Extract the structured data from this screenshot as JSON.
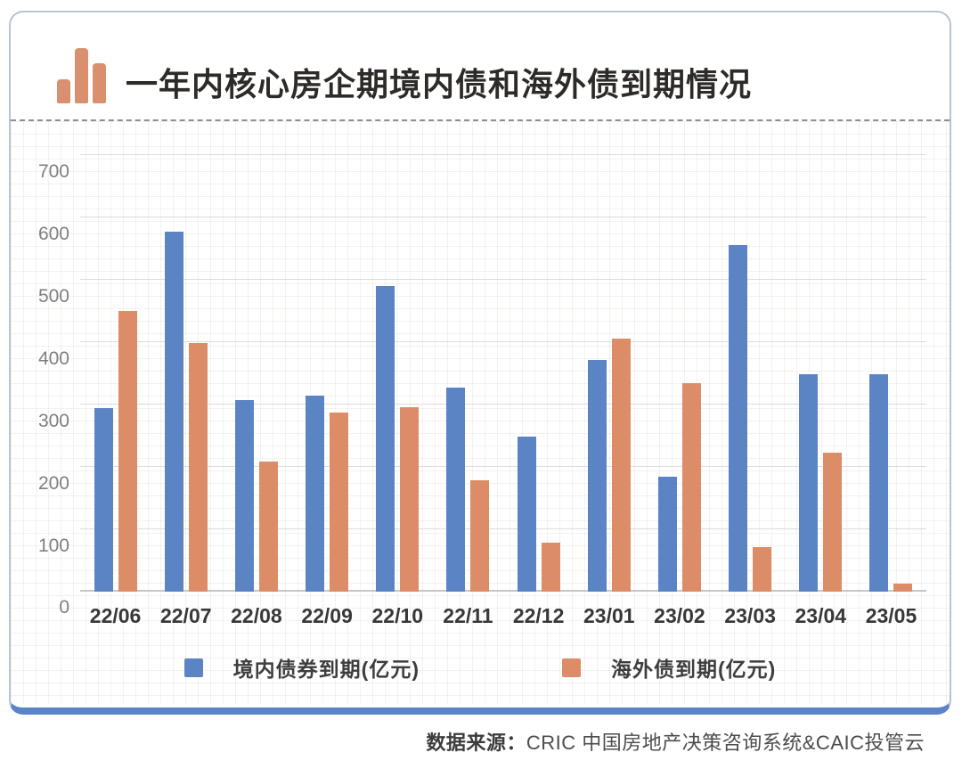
{
  "title": {
    "regular": "一年内核心房企",
    "bold": "期境内债和海外债到期情况"
  },
  "separator": "dashed",
  "chart_data": {
    "type": "bar",
    "title": "一年内核心房企期境内债和海外债到期情况",
    "categories": [
      "22/06",
      "22/07",
      "22/08",
      "22/09",
      "22/10",
      "22/11",
      "22/12",
      "23/01",
      "23/02",
      "23/03",
      "23/04",
      "23/05"
    ],
    "series": [
      {
        "name": "境内债券到期(亿元)",
        "color": "#5b84c4",
        "values": [
          295,
          577,
          307,
          315,
          490,
          327,
          248,
          372,
          184,
          556,
          349,
          349
        ]
      },
      {
        "name": "海外债到期(亿元)",
        "color": "#dc8d68",
        "values": [
          450,
          398,
          209,
          287,
          296,
          179,
          78,
          406,
          335,
          71,
          223,
          13
        ]
      }
    ],
    "ylim": [
      0,
      700
    ],
    "yticks": [
      0,
      100,
      200,
      300,
      400,
      500,
      600,
      700
    ],
    "xlabel": "",
    "ylabel": "",
    "grid": true,
    "minor_grid": true,
    "legend_position": "bottom"
  },
  "legend": {
    "items": [
      {
        "label": "境内债券到期(亿元)",
        "color": "#5b84c4"
      },
      {
        "label": "海外债到期(亿元)",
        "color": "#dc8d68"
      }
    ]
  },
  "source": {
    "prefix": "数据来源：",
    "text": "CRIC 中国房地产决策咨询系统&CAIC投管云"
  },
  "colors": {
    "bar_blue": "#5b84c4",
    "bar_orange": "#dc8d68",
    "title_icon_orange": "#d9906e",
    "card_border": "#b7c3d7",
    "bottom_accent": "#5b83c7"
  },
  "icons": {
    "title_icon": "bar-chart-icon"
  }
}
